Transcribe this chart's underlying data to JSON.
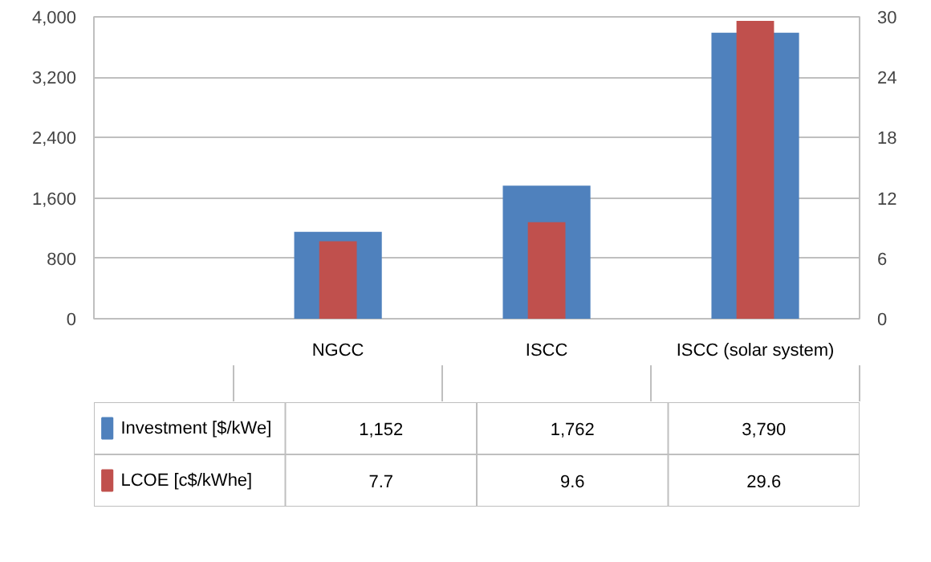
{
  "chart_data": {
    "type": "bar",
    "categories": [
      "NGCC",
      "ISCC",
      "ISCC (solar system)"
    ],
    "series": [
      {
        "name": "Investment [$/kWe]",
        "color": "#4f81bd",
        "values": [
          1152,
          1762,
          3790
        ],
        "value_labels": [
          "1,152",
          "1,762",
          "3,790"
        ]
      },
      {
        "name": "LCOE [c$/kWhe]",
        "color": "#c0504d",
        "values": [
          7.7,
          9.6,
          29.6
        ],
        "value_labels": [
          "7.7",
          "9.6",
          "29.6"
        ],
        "axis": "y2"
      }
    ],
    "ylim": [
      0,
      4000
    ],
    "yticks": [
      0,
      {
        "value": 800,
        "label": "800"
      },
      {
        "value": 1600,
        "label": "1,600"
      },
      {
        "value": 2400,
        "label": "2,400"
      },
      {
        "value": 3200,
        "label": "3,200"
      },
      {
        "value": 4000,
        "label": "4,000"
      }
    ],
    "y2lim": [
      0,
      30
    ],
    "y2ticks": [
      0,
      6,
      12,
      18,
      24,
      30
    ],
    "grid": "y",
    "legend": "bottom"
  }
}
